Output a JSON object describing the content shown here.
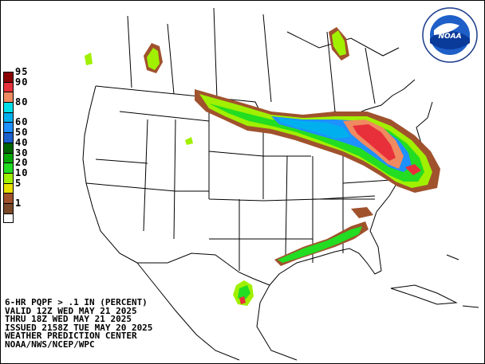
{
  "map": {
    "title_lines": [
      "6-HR PQPF > .1 IN (PERCENT)",
      "VALID 12Z WED MAY 21 2025",
      "THRU 18Z WED MAY 21 2025",
      "ISSUED 2158Z TUE MAY 20 2025",
      "WEATHER PREDICTION CENTER",
      "NOAA/NWS/NCEP/WPC"
    ],
    "logo_text": "NOAA",
    "legend": [
      {
        "label": "95",
        "color": "#8b0000"
      },
      {
        "label": "90",
        "color": "#e8303a"
      },
      {
        "label": "",
        "color": "#f08a60"
      },
      {
        "label": "80",
        "color": "#00e0e8"
      },
      {
        "label": "",
        "color": "#00b0ee"
      },
      {
        "label": "60",
        "color": "#1e90ff"
      },
      {
        "label": "50",
        "color": "#1c5fcc"
      },
      {
        "label": "40",
        "color": "#006400"
      },
      {
        "label": "30",
        "color": "#00a800"
      },
      {
        "label": "20",
        "color": "#22dd22"
      },
      {
        "label": "10",
        "color": "#a0f000"
      },
      {
        "label": "5",
        "color": "#e8e000"
      },
      {
        "label": "",
        "color": "#a0522d"
      },
      {
        "label": "1",
        "color": "#7a4a2a"
      },
      {
        "label": "",
        "color": "#ffffff"
      }
    ]
  }
}
